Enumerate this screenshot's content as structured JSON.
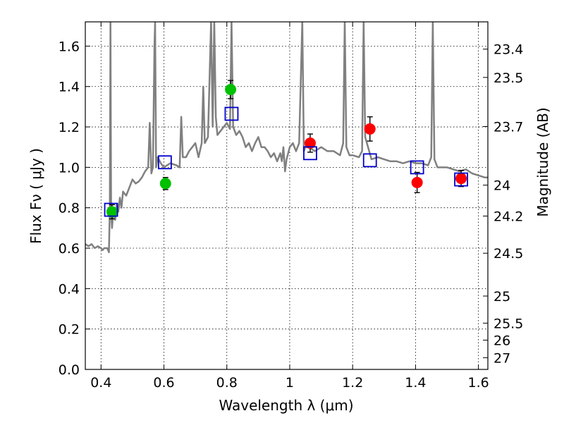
{
  "chart_data": {
    "type": "scatter",
    "title": "",
    "xlabel": "Wavelength  λ (μm)",
    "ylabel": "Flux  Fν  ( μJy )",
    "ylabel_right": "Magnitude (AB)",
    "xlim": [
      0.35,
      1.63
    ],
    "ylim": [
      0.0,
      1.72
    ],
    "grid": true,
    "x_ticks": [
      0.4,
      0.6,
      0.8,
      1.0,
      1.2,
      1.4,
      1.6
    ],
    "x_tick_labels": [
      "0.4",
      "0.6",
      "0.8",
      "1",
      "1.2",
      "1.4",
      "1.6"
    ],
    "y_ticks": [
      0.0,
      0.2,
      0.4,
      0.6,
      0.8,
      1.0,
      1.2,
      1.4,
      1.6
    ],
    "y_tick_labels": [
      "0.0",
      "0.2",
      "0.4",
      "0.6",
      "0.8",
      "1.0",
      "1.2",
      "1.4",
      "1.6"
    ],
    "right_ticks": [
      {
        "label": "23.4",
        "flux": 1.585
      },
      {
        "label": "23.5",
        "flux": 1.445
      },
      {
        "label": "23.7",
        "flux": 1.202
      },
      {
        "label": "24",
        "flux": 0.912
      },
      {
        "label": "24.2",
        "flux": 0.759
      },
      {
        "label": "24.5",
        "flux": 0.575
      },
      {
        "label": "25",
        "flux": 0.363
      },
      {
        "label": "25.5",
        "flux": 0.229
      },
      {
        "label": "26",
        "flux": 0.145
      },
      {
        "label": "27",
        "flux": 0.058
      }
    ],
    "series": [
      {
        "name": "model spectrum",
        "kind": "line",
        "color": "#808080",
        "x": [
          0.35,
          0.36,
          0.37,
          0.38,
          0.39,
          0.4,
          0.405,
          0.41,
          0.415,
          0.42,
          0.425,
          0.428,
          0.43,
          0.432,
          0.435,
          0.44,
          0.445,
          0.45,
          0.455,
          0.46,
          0.465,
          0.47,
          0.48,
          0.49,
          0.5,
          0.51,
          0.52,
          0.53,
          0.54,
          0.55,
          0.555,
          0.56,
          0.565,
          0.57,
          0.572,
          0.575,
          0.58,
          0.59,
          0.6,
          0.62,
          0.64,
          0.65,
          0.655,
          0.66,
          0.67,
          0.68,
          0.69,
          0.7,
          0.71,
          0.72,
          0.725,
          0.73,
          0.74,
          0.75,
          0.755,
          0.76,
          0.765,
          0.77,
          0.78,
          0.79,
          0.8,
          0.81,
          0.815,
          0.82,
          0.83,
          0.84,
          0.85,
          0.86,
          0.87,
          0.88,
          0.89,
          0.9,
          0.91,
          0.92,
          0.93,
          0.94,
          0.95,
          0.96,
          0.97,
          0.975,
          0.98,
          0.985,
          0.99,
          1.0,
          1.01,
          1.02,
          1.03,
          1.04,
          1.045,
          1.05,
          1.06,
          1.07,
          1.08,
          1.1,
          1.12,
          1.14,
          1.16,
          1.17,
          1.175,
          1.18,
          1.19,
          1.2,
          1.22,
          1.23,
          1.235,
          1.24,
          1.26,
          1.28,
          1.3,
          1.32,
          1.34,
          1.36,
          1.38,
          1.4,
          1.42,
          1.44,
          1.45,
          1.455,
          1.46,
          1.47,
          1.48,
          1.5,
          1.52,
          1.54,
          1.56,
          1.58,
          1.6,
          1.62,
          1.63
        ],
        "y": [
          0.62,
          0.61,
          0.62,
          0.6,
          0.61,
          0.6,
          0.59,
          0.6,
          0.6,
          0.6,
          0.58,
          0.8,
          1.72,
          0.78,
          0.7,
          0.8,
          0.74,
          0.82,
          0.78,
          0.85,
          0.8,
          0.88,
          0.86,
          0.9,
          0.94,
          0.92,
          0.93,
          0.95,
          0.98,
          1.0,
          1.22,
          0.97,
          1.0,
          1.6,
          1.72,
          1.0,
          1.05,
          1.02,
          1.0,
          1.02,
          1.01,
          1.0,
          1.25,
          1.05,
          1.05,
          1.08,
          1.1,
          1.12,
          1.05,
          1.12,
          1.4,
          1.12,
          1.15,
          1.72,
          1.2,
          1.72,
          1.25,
          1.16,
          1.18,
          1.2,
          1.22,
          1.19,
          1.72,
          1.2,
          1.16,
          1.18,
          1.15,
          1.1,
          1.12,
          1.08,
          1.12,
          1.15,
          1.1,
          1.1,
          1.08,
          1.05,
          1.07,
          1.03,
          1.07,
          1.03,
          1.1,
          0.98,
          1.04,
          1.1,
          1.12,
          1.08,
          1.12,
          1.72,
          1.08,
          1.1,
          1.1,
          1.09,
          1.08,
          1.1,
          1.08,
          1.08,
          1.06,
          1.12,
          1.72,
          1.1,
          1.06,
          1.06,
          1.05,
          1.08,
          1.72,
          1.15,
          1.04,
          1.05,
          1.04,
          1.03,
          1.03,
          1.02,
          1.03,
          1.02,
          1.02,
          1.01,
          1.05,
          1.72,
          1.04,
          1.0,
          1.0,
          1.0,
          0.99,
          0.98,
          0.99,
          0.97,
          0.96,
          0.95,
          0.95
        ]
      },
      {
        "name": "observed (green)",
        "kind": "points",
        "color": "#00c000",
        "x": [
          0.435,
          0.605,
          0.812
        ],
        "y": [
          0.78,
          0.92,
          1.385
        ],
        "yerr": [
          0.035,
          0.03,
          0.045
        ]
      },
      {
        "name": "observed (red)",
        "kind": "points",
        "color": "#ff0000",
        "x": [
          1.065,
          1.255,
          1.405,
          1.545
        ],
        "y": [
          1.12,
          1.19,
          0.925,
          0.945
        ],
        "yerr": [
          0.045,
          0.06,
          0.05,
          0.04
        ]
      },
      {
        "name": "model photometry",
        "kind": "squares",
        "color": "#0000cc",
        "x": [
          0.432,
          0.603,
          0.815,
          1.065,
          1.255,
          1.405,
          1.545
        ],
        "y": [
          0.79,
          1.025,
          1.265,
          1.07,
          1.035,
          1.0,
          0.94
        ]
      }
    ]
  }
}
